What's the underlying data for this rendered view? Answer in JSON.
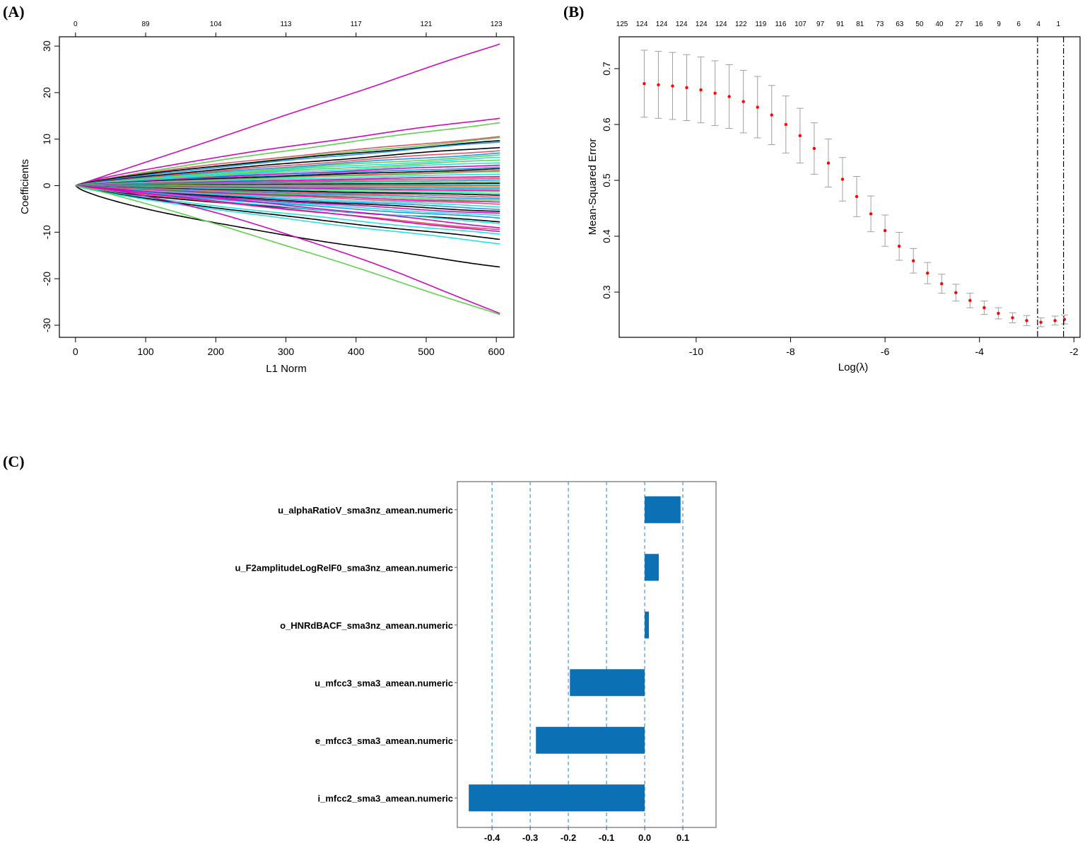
{
  "panels": {
    "a": "(A)",
    "b": "(B)",
    "c": "(C)"
  },
  "chart_data": [
    {
      "type": "line",
      "title": "(A)",
      "xlabel": "L1 Norm",
      "ylabel": "Coefficients",
      "xlim": [
        -23,
        625
      ],
      "ylim": [
        -32.6,
        32
      ],
      "xticks": [
        0,
        100,
        200,
        300,
        400,
        500,
        600
      ],
      "yticks": [
        -30,
        -20,
        -10,
        0,
        10,
        20,
        30
      ],
      "top_axis": {
        "x": [
          0,
          100,
          200,
          300,
          400,
          500,
          600
        ],
        "labels": [
          "0",
          "89",
          "104",
          "113",
          "117",
          "121",
          "123"
        ]
      },
      "x_max": 605,
      "series": [
        {
          "end": 30.5,
          "color": "#CD0BBC",
          "shape": 1.0
        },
        {
          "end": 14.6,
          "color": "#CD0BBC",
          "shape": 0.8
        },
        {
          "end": 13.6,
          "color": "#61D04F",
          "shape": 0.85
        },
        {
          "end": 10.5,
          "color": "#DF536B",
          "shape": 0.75
        },
        {
          "end": 10.2,
          "color": "#61D04F",
          "shape": 0.8
        },
        {
          "end": 9.6,
          "color": "#000000",
          "shape": 0.75
        },
        {
          "end": 9.4,
          "color": "#2297E6",
          "shape": 0.8
        },
        {
          "end": 8.3,
          "color": "#000000",
          "shape": 0.8
        },
        {
          "end": 7.6,
          "color": "#DF536B",
          "shape": 0.8
        },
        {
          "end": 7.0,
          "color": "#2297E6",
          "shape": 0.8
        },
        {
          "end": 6.5,
          "color": "#61D04F",
          "shape": 0.8
        },
        {
          "end": 6.0,
          "color": "#28E2E5",
          "shape": 0.8
        },
        {
          "end": 5.5,
          "color": "#61D04F",
          "shape": 0.8
        },
        {
          "end": 5.0,
          "color": "#28E2E5",
          "shape": 0.8
        },
        {
          "end": 4.5,
          "color": "#CD0BBC",
          "shape": 0.8
        },
        {
          "end": 4.0,
          "color": "#2297E6",
          "shape": 0.8
        },
        {
          "end": 3.6,
          "color": "#000000",
          "shape": 0.8
        },
        {
          "end": 3.2,
          "color": "#DF536B",
          "shape": 0.8
        },
        {
          "end": 3.0,
          "color": "#61D04F",
          "shape": 0.8
        },
        {
          "end": 2.5,
          "color": "#28E2E5",
          "shape": 0.8
        },
        {
          "end": 2.0,
          "color": "#CD0BBC",
          "shape": 0.8
        },
        {
          "end": 1.6,
          "color": "#DF536B",
          "shape": 0.8
        },
        {
          "end": 1.2,
          "color": "#2297E6",
          "shape": 0.8
        },
        {
          "end": 0.8,
          "color": "#61D04F",
          "shape": 0.8
        },
        {
          "end": 0.5,
          "color": "#000000",
          "shape": 0.8
        },
        {
          "end": 0.2,
          "color": "#28E2E5",
          "shape": 0.8
        },
        {
          "end": 0.0,
          "color": "#DF536B",
          "shape": 0.8
        },
        {
          "end": -0.3,
          "color": "#61D04F",
          "shape": 0.8
        },
        {
          "end": -0.6,
          "color": "#2297E6",
          "shape": 0.8
        },
        {
          "end": -1.0,
          "color": "#CD0BBC",
          "shape": 0.8
        },
        {
          "end": -1.3,
          "color": "#61D04F",
          "shape": 0.8
        },
        {
          "end": -1.7,
          "color": "#28E2E5",
          "shape": 0.8
        },
        {
          "end": -2.0,
          "color": "#000000",
          "shape": 0.8
        },
        {
          "end": -2.4,
          "color": "#DF536B",
          "shape": 0.8
        },
        {
          "end": -2.8,
          "color": "#2297E6",
          "shape": 0.8
        },
        {
          "end": -3.2,
          "color": "#61D04F",
          "shape": 0.8
        },
        {
          "end": -3.6,
          "color": "#CD0BBC",
          "shape": 0.8
        },
        {
          "end": -4.0,
          "color": "#DF536B",
          "shape": 0.8
        },
        {
          "end": -4.5,
          "color": "#28E2E5",
          "shape": 0.8
        },
        {
          "end": -5.0,
          "color": "#2297E6",
          "shape": 0.8
        },
        {
          "end": -5.5,
          "color": "#000000",
          "shape": 0.8
        },
        {
          "end": -6.0,
          "color": "#CD0BBC",
          "shape": 0.8
        },
        {
          "end": -6.5,
          "color": "#28E2E5",
          "shape": 0.8
        },
        {
          "end": -7.0,
          "color": "#2297E6",
          "shape": 0.8
        },
        {
          "end": -7.7,
          "color": "#000000",
          "shape": 0.7
        },
        {
          "end": -8.0,
          "color": "#28E2E5",
          "shape": 0.8
        },
        {
          "end": -9.0,
          "color": "#CD0BBC",
          "shape": 1.1
        },
        {
          "end": -9.5,
          "color": "#DF536B",
          "shape": 0.9
        },
        {
          "end": -10.0,
          "color": "#CD0BBC",
          "shape": 1.0
        },
        {
          "end": -10.5,
          "color": "#28E2E5",
          "shape": 0.8
        },
        {
          "end": -11.5,
          "color": "#000000",
          "shape": 0.8
        },
        {
          "end": -12.4,
          "color": "#28E2E5",
          "shape": 0.8
        },
        {
          "end": -17.4,
          "color": "#000000",
          "shape": 0.7
        },
        {
          "end": -27.5,
          "color": "#CD0BBC",
          "shape": 1.4
        },
        {
          "end": -27.8,
          "color": "#61D04F",
          "shape": 1.1
        }
      ]
    },
    {
      "type": "scatter",
      "title": "(B)",
      "xlabel": "Log(λ)",
      "ylabel": "Mean-Squared Error",
      "xlim": [
        -11.63,
        -1.87
      ],
      "ylim": [
        0.219,
        0.757
      ],
      "xticks": [
        -10,
        -8,
        -6,
        -4,
        -2
      ],
      "yticks": [
        0.3,
        0.4,
        0.5,
        0.6,
        0.7
      ],
      "top_axis": {
        "start": -11.57,
        "step": 0.42,
        "labels": [
          "125",
          "124",
          "124",
          "124",
          "124",
          "124",
          "122",
          "119",
          "116",
          "107",
          "97",
          "91",
          "81",
          "73",
          "63",
          "50",
          "40",
          "27",
          "16",
          "9",
          "6",
          "4",
          "1"
        ]
      },
      "vlines": [
        -2.77,
        -2.22
      ],
      "x": [
        -11.1,
        -10.8,
        -10.5,
        -10.2,
        -9.9,
        -9.6,
        -9.3,
        -9.0,
        -8.7,
        -8.4,
        -8.1,
        -7.8,
        -7.5,
        -7.2,
        -6.9,
        -6.6,
        -6.3,
        -6.0,
        -5.7,
        -5.4,
        -5.1,
        -4.8,
        -4.5,
        -4.2,
        -3.9,
        -3.6,
        -3.3,
        -3.0,
        -2.7,
        -2.4,
        -2.2
      ],
      "mse": [
        0.673,
        0.671,
        0.669,
        0.666,
        0.662,
        0.656,
        0.65,
        0.641,
        0.631,
        0.617,
        0.6,
        0.58,
        0.557,
        0.531,
        0.502,
        0.471,
        0.44,
        0.41,
        0.382,
        0.356,
        0.334,
        0.315,
        0.299,
        0.285,
        0.272,
        0.262,
        0.254,
        0.249,
        0.246,
        0.249,
        0.251
      ],
      "se": [
        0.06,
        0.06,
        0.06,
        0.059,
        0.059,
        0.058,
        0.057,
        0.056,
        0.055,
        0.053,
        0.051,
        0.049,
        0.046,
        0.043,
        0.039,
        0.036,
        0.032,
        0.028,
        0.025,
        0.022,
        0.019,
        0.017,
        0.015,
        0.013,
        0.012,
        0.01,
        0.009,
        0.009,
        0.008,
        0.008,
        0.008
      ],
      "point_color": "#FF0000",
      "errorbar_color": "#A0A0A0"
    },
    {
      "type": "bar",
      "title": "(C)",
      "orientation": "horizontal",
      "categories": [
        "u_alphaRatioV_sma3nz_amean.numeric",
        "u_F2amplitudeLogRelF0_sma3nz_amean.numeric",
        "o_HNRdBACF_sma3nz_amean.numeric",
        "u_mfcc3_sma3_amean.numeric",
        "e_mfcc3_sma3_amean.numeric",
        "i_mfcc2_sma3_amean.numeric"
      ],
      "values": [
        0.094,
        0.037,
        0.011,
        -0.196,
        -0.285,
        -0.461
      ],
      "xlim": [
        -0.491,
        0.187
      ],
      "xticks": [
        -0.4,
        -0.3,
        -0.2,
        -0.1,
        0.0,
        0.1
      ],
      "xtick_labels": [
        "-0.4",
        "-0.3",
        "-0.2",
        "-0.1",
        "0.0",
        "0.1"
      ],
      "grid": "vertical dashed",
      "bar_color": "#0B70B4",
      "grid_color": "#5B9BD5"
    }
  ]
}
